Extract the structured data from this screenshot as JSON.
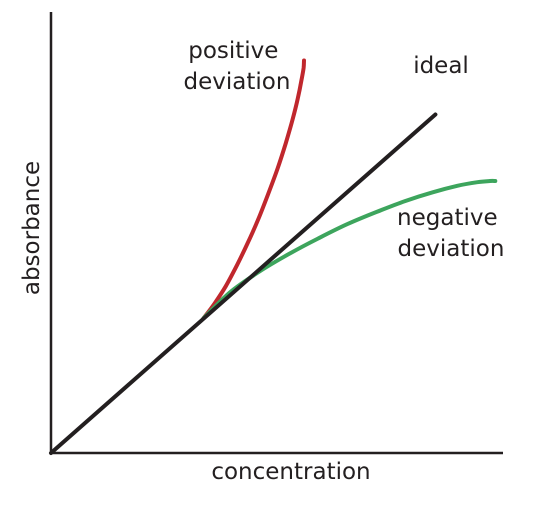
{
  "chart_data": {
    "type": "line",
    "xlabel": "concentration",
    "ylabel": "absorbance",
    "grid": false,
    "legend": "none",
    "xlim": [
      0,
      100
    ],
    "ylim": [
      0,
      100
    ],
    "series": [
      {
        "name": "ideal",
        "label_lines": [
          "ideal"
        ],
        "color": "#231f20",
        "x": [
          0,
          86
        ],
        "y": [
          0,
          84
        ]
      },
      {
        "name": "positive deviation",
        "label_lines": [
          "positive",
          "deviation"
        ],
        "color": "#c0272d",
        "x": [
          34.1,
          36.6,
          39.1,
          41.6,
          44.0,
          46.4,
          48.6,
          50.7,
          52.5,
          54.0,
          55.2,
          56.0,
          56.5,
          56.6
        ],
        "y": [
          33.4,
          37.1,
          41.4,
          46.6,
          52.1,
          58.1,
          64.3,
          70.6,
          76.8,
          82.6,
          87.9,
          92.3,
          95.5,
          97.4
        ]
      },
      {
        "name": "negative deviation",
        "label_lines": [
          "negative",
          "deviation"
        ],
        "color": "#3da55d",
        "x": [
          34.1,
          40.1,
          46.6,
          53.1,
          59.7,
          66.3,
          72.8,
          79.2,
          85.4,
          90.9,
          95.4,
          98.2,
          99.4
        ],
        "y": [
          33.4,
          39.9,
          45.0,
          49.3,
          53.2,
          56.8,
          59.8,
          62.5,
          64.7,
          66.3,
          67.2,
          67.5,
          67.5
        ]
      }
    ]
  }
}
